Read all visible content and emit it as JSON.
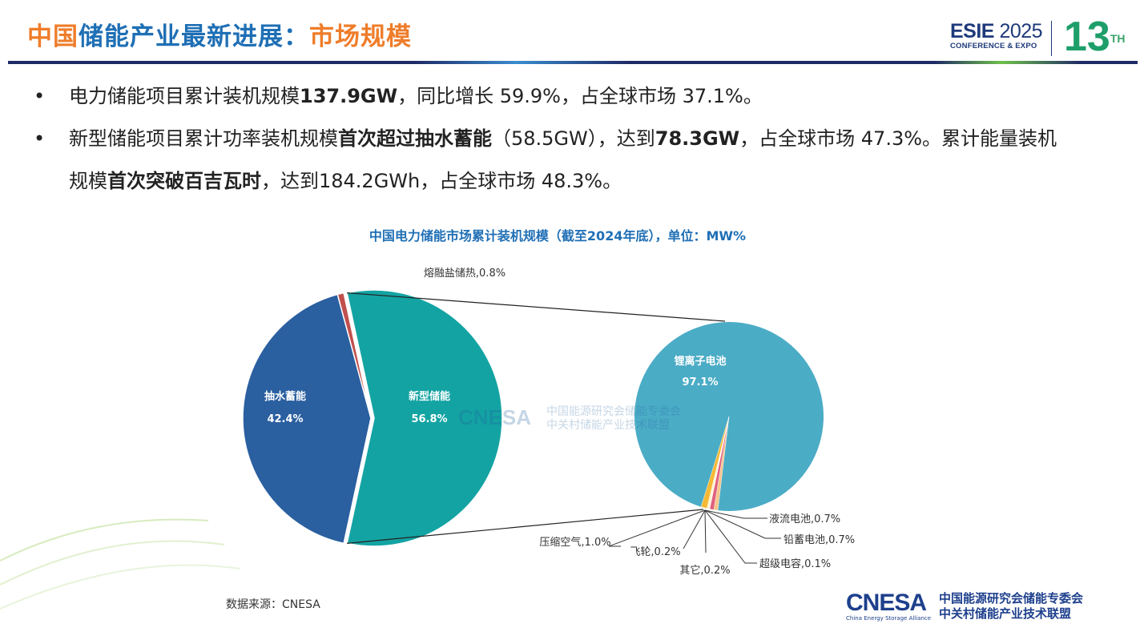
{
  "header": {
    "title_parts": [
      "中国",
      "储能产业最新进展：",
      "市场规模"
    ],
    "event_name": "ESIE",
    "event_year": "2025",
    "event_sub": "CONFERENCE & EXPO",
    "edition": "13",
    "edition_suffix": "TH"
  },
  "bullets": [
    {
      "segments": [
        {
          "t": "电力储能项目累计装机规模",
          "b": false
        },
        {
          "t": "137.9GW",
          "b": true
        },
        {
          "t": "，同比增长 59.9%，占全球市场 37.1%。",
          "b": false
        }
      ]
    },
    {
      "segments": [
        {
          "t": "新型储能项目累计功率装机规模",
          "b": false
        },
        {
          "t": "首次超过抽水蓄能",
          "b": true
        },
        {
          "t": "（58.5GW），达到",
          "b": false
        },
        {
          "t": "78.3GW",
          "b": true
        },
        {
          "t": "，占全球市场 47.3%。累计能量装机规模",
          "b": false
        },
        {
          "t": "首次突破百吉瓦时",
          "b": true
        },
        {
          "t": "，达到184.2GWh，占全球市场 48.3%。",
          "b": false
        }
      ]
    }
  ],
  "chart_data": {
    "type": "pie-of-pie",
    "title": "中国电力储能市场累计装机规模（截至2024年底），单位：MW%",
    "primary": [
      {
        "label": "抽水蓄能",
        "value": 42.4,
        "color": "#2a5fa0"
      },
      {
        "label": "熔融盐储热",
        "value": 0.8,
        "color": "#c0504d"
      },
      {
        "label": "新型储能",
        "value": 56.8,
        "color": "#14a3a3"
      }
    ],
    "secondary": [
      {
        "label": "锂离子电池",
        "value": 97.1,
        "color": "#4bacc6"
      },
      {
        "label": "液流电池",
        "value": 0.7,
        "color": "#f7c58a"
      },
      {
        "label": "铅蓄电池",
        "value": 0.7,
        "color": "#e0607e"
      },
      {
        "label": "超级电容",
        "value": 0.1,
        "color": "#f6e0b0"
      },
      {
        "label": "其它",
        "value": 0.2,
        "color": "#fdf1d0"
      },
      {
        "label": "飞轮",
        "value": 0.2,
        "color": "#fbe7a8"
      },
      {
        "label": "压缩空气",
        "value": 1.0,
        "color": "#f5b935"
      }
    ]
  },
  "source": "数据来源：CNESA",
  "logo": {
    "name": "CNESA",
    "en": "China Energy Storage Alliance",
    "zh1": "中国能源研究会储能专委会",
    "zh2": "中关村储能产业技术联盟"
  }
}
